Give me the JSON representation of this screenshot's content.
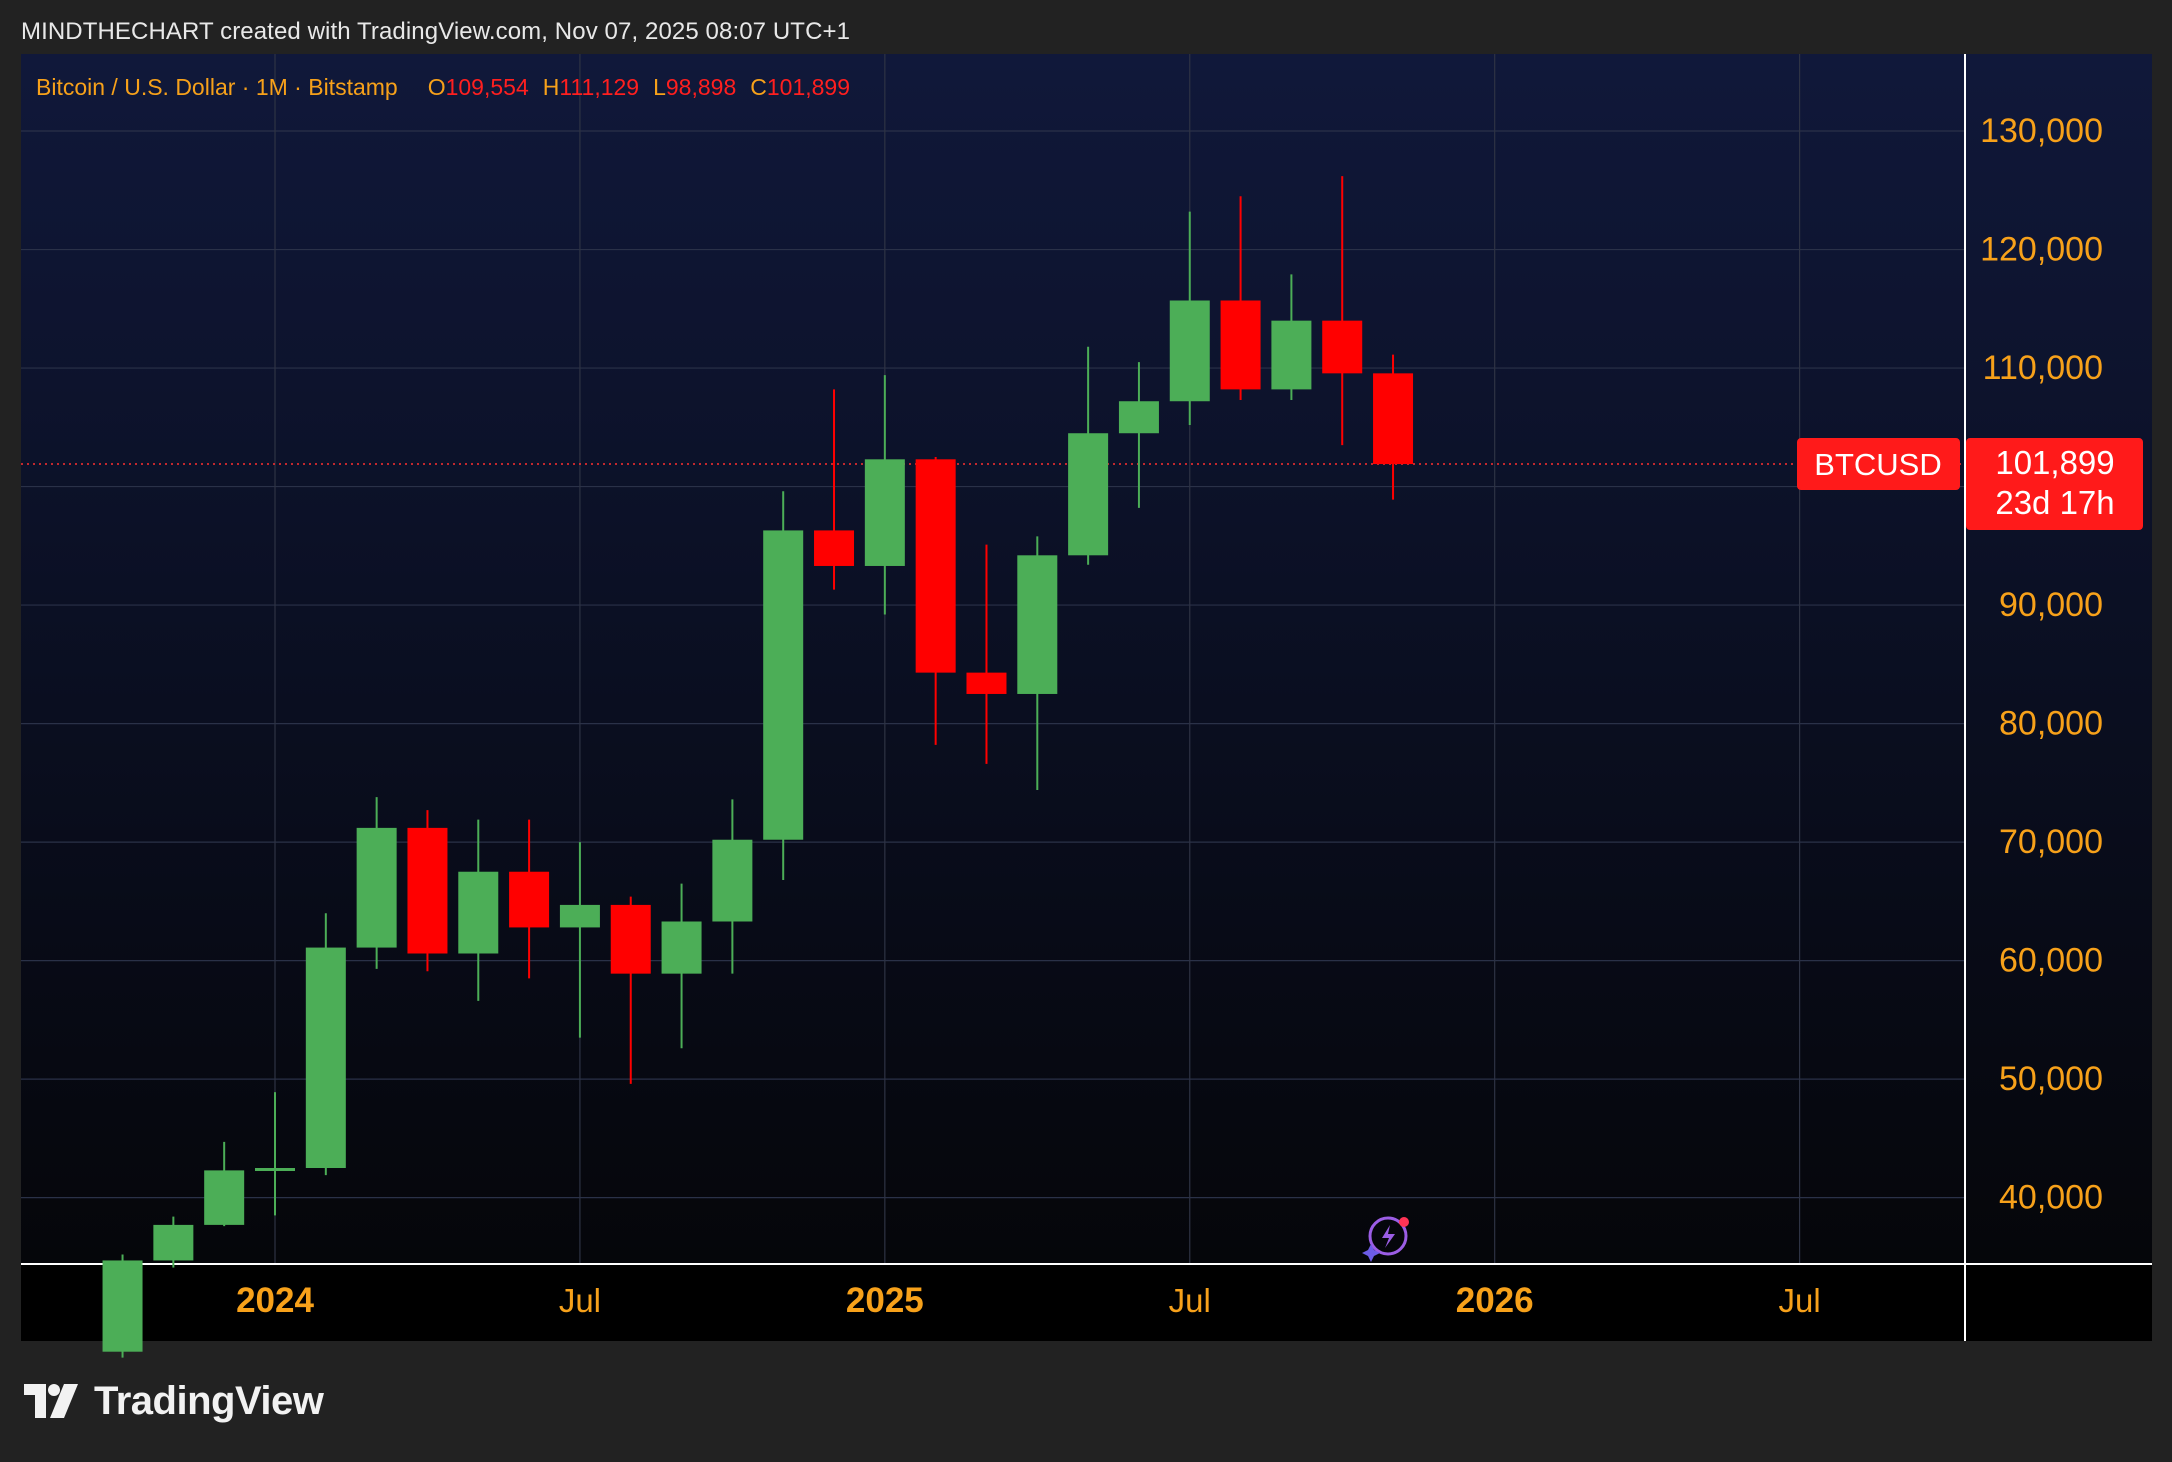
{
  "header": {
    "credit": "MINDTHECHART created with TradingView.com, Nov 07, 2025 08:07 UTC+1"
  },
  "legend": {
    "symbol": "Bitcoin / U.S. Dollar · 1M · Bitstamp",
    "o_label": "O",
    "o_value": "109,554",
    "h_label": "H",
    "h_value": "111,129",
    "l_label": "L",
    "l_value": "98,898",
    "c_label": "C",
    "c_value": "101,899"
  },
  "price_tag": {
    "symbol": "BTCUSD",
    "price": "101,899",
    "countdown": "23d 17h"
  },
  "brand": {
    "name": "TradingView"
  },
  "colors": {
    "up": "#4cae57",
    "down": "#ff0000",
    "axis_text": "#f7a11a",
    "bg_top": "#10183a",
    "bg_bottom": "#05060a"
  },
  "chart_data": {
    "type": "candlestick",
    "title": "Bitcoin / U.S. Dollar · 1M · Bitstamp",
    "interval": "1M",
    "ylim": [
      34400,
      136500
    ],
    "y_ticks": [
      40000,
      50000,
      60000,
      70000,
      80000,
      90000,
      100000,
      110000,
      120000,
      130000
    ],
    "y_tick_labels": [
      "40,000",
      "50,000",
      "60,000",
      "70,000",
      "80,000",
      "90,000",
      "",
      "110,000",
      "120,000",
      "130,000"
    ],
    "x_ticks": [
      {
        "label": "2024",
        "date": "2024-01",
        "bold": true
      },
      {
        "label": "Jul",
        "date": "2024-07",
        "bold": false
      },
      {
        "label": "2025",
        "date": "2025-01",
        "bold": true
      },
      {
        "label": "Jul",
        "date": "2025-07",
        "bold": false
      },
      {
        "label": "2026",
        "date": "2026-01",
        "bold": true
      },
      {
        "label": "Jul",
        "date": "2026-07",
        "bold": false
      }
    ],
    "last_price": 101899,
    "candles": [
      {
        "date": "2023-10",
        "o": 27000,
        "h": 35200,
        "l": 26500,
        "c": 34700
      },
      {
        "date": "2023-11",
        "o": 34700,
        "h": 38400,
        "l": 34100,
        "c": 37700
      },
      {
        "date": "2023-12",
        "o": 37700,
        "h": 44700,
        "l": 37600,
        "c": 42300
      },
      {
        "date": "2024-01",
        "o": 42300,
        "h": 48900,
        "l": 38500,
        "c": 42500
      },
      {
        "date": "2024-02",
        "o": 42500,
        "h": 64000,
        "l": 41900,
        "c": 61100
      },
      {
        "date": "2024-03",
        "o": 61100,
        "h": 73800,
        "l": 59300,
        "c": 71200
      },
      {
        "date": "2024-04",
        "o": 71200,
        "h": 72700,
        "l": 59100,
        "c": 60600
      },
      {
        "date": "2024-05",
        "o": 60600,
        "h": 71900,
        "l": 56600,
        "c": 67500
      },
      {
        "date": "2024-06",
        "o": 67500,
        "h": 71900,
        "l": 58500,
        "c": 62800
      },
      {
        "date": "2024-07",
        "o": 62800,
        "h": 70000,
        "l": 53500,
        "c": 64700
      },
      {
        "date": "2024-08",
        "o": 64700,
        "h": 65400,
        "l": 49600,
        "c": 58900
      },
      {
        "date": "2024-09",
        "o": 58900,
        "h": 66500,
        "l": 52600,
        "c": 63300
      },
      {
        "date": "2024-10",
        "o": 63300,
        "h": 73600,
        "l": 58900,
        "c": 70200
      },
      {
        "date": "2024-11",
        "o": 70200,
        "h": 99600,
        "l": 66800,
        "c": 96300
      },
      {
        "date": "2024-12",
        "o": 96300,
        "h": 108200,
        "l": 91300,
        "c": 93300
      },
      {
        "date": "2025-01",
        "o": 93300,
        "h": 109400,
        "l": 89200,
        "c": 102300
      },
      {
        "date": "2025-02",
        "o": 102300,
        "h": 102500,
        "l": 78200,
        "c": 84300
      },
      {
        "date": "2025-03",
        "o": 84300,
        "h": 95100,
        "l": 76600,
        "c": 82500
      },
      {
        "date": "2025-04",
        "o": 82500,
        "h": 95800,
        "l": 74400,
        "c": 94200
      },
      {
        "date": "2025-05",
        "o": 94200,
        "h": 111800,
        "l": 93400,
        "c": 104500
      },
      {
        "date": "2025-06",
        "o": 104500,
        "h": 110500,
        "l": 98200,
        "c": 107200
      },
      {
        "date": "2025-07",
        "o": 107200,
        "h": 123200,
        "l": 105200,
        "c": 115700
      },
      {
        "date": "2025-08",
        "o": 115700,
        "h": 124500,
        "l": 107300,
        "c": 108200
      },
      {
        "date": "2025-09",
        "o": 108200,
        "h": 117900,
        "l": 107300,
        "c": 114000
      },
      {
        "date": "2025-10",
        "o": 114000,
        "h": 126200,
        "l": 103500,
        "c": 109554
      },
      {
        "date": "2025-11",
        "o": 109554,
        "h": 111129,
        "l": 98898,
        "c": 101899
      }
    ]
  }
}
